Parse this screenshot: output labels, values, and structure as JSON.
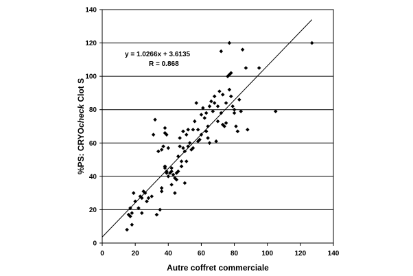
{
  "chart_data": {
    "type": "scatter",
    "title": "",
    "xlabel": "Autre coffret commerciale",
    "ylabel_prefix": "%PS: CRYO",
    "ylabel_italic": "check",
    "ylabel_suffix": " Clot S",
    "xlim": [
      0,
      140
    ],
    "ylim": [
      0,
      140
    ],
    "xticks": [
      "0",
      "20",
      "40",
      "60",
      "80",
      "100",
      "120",
      "140"
    ],
    "yticks": [
      "0",
      "20",
      "40",
      "60",
      "80",
      "100",
      "120",
      "140"
    ],
    "grid": "horizontal",
    "legend": "none",
    "annotation": {
      "equation": "y = 1.0266x + 3.6135",
      "r": "R = 0.868"
    },
    "trendline": {
      "slope": 1.0266,
      "intercept": 3.6135,
      "x_range": [
        0,
        127
      ]
    },
    "points": [
      [
        15,
        8
      ],
      [
        16,
        17
      ],
      [
        17,
        21
      ],
      [
        17,
        16
      ],
      [
        18,
        18
      ],
      [
        18,
        11
      ],
      [
        19,
        30
      ],
      [
        20,
        25
      ],
      [
        22,
        21
      ],
      [
        23,
        28
      ],
      [
        24,
        27
      ],
      [
        24,
        18
      ],
      [
        25,
        31
      ],
      [
        26,
        30
      ],
      [
        27,
        25
      ],
      [
        28,
        27
      ],
      [
        30,
        28
      ],
      [
        31,
        65
      ],
      [
        32,
        74
      ],
      [
        33,
        17
      ],
      [
        34,
        55
      ],
      [
        35,
        20
      ],
      [
        36,
        56
      ],
      [
        36,
        33
      ],
      [
        36,
        31
      ],
      [
        37,
        58
      ],
      [
        38,
        69
      ],
      [
        38,
        66
      ],
      [
        38,
        46
      ],
      [
        38,
        45
      ],
      [
        39,
        65
      ],
      [
        39,
        43
      ],
      [
        39,
        42
      ],
      [
        40,
        57
      ],
      [
        40,
        40
      ],
      [
        41,
        42
      ],
      [
        42,
        45
      ],
      [
        42,
        43
      ],
      [
        42,
        35
      ],
      [
        43,
        41
      ],
      [
        44,
        30
      ],
      [
        44,
        39
      ],
      [
        45,
        42
      ],
      [
        45,
        38
      ],
      [
        46,
        52
      ],
      [
        46,
        43
      ],
      [
        47,
        63
      ],
      [
        47,
        58
      ],
      [
        48,
        49
      ],
      [
        48,
        46
      ],
      [
        49,
        67
      ],
      [
        49,
        57
      ],
      [
        50,
        55
      ],
      [
        50,
        36
      ],
      [
        51,
        65
      ],
      [
        51,
        49
      ],
      [
        52,
        68
      ],
      [
        52,
        58
      ],
      [
        53,
        60
      ],
      [
        54,
        56
      ],
      [
        55,
        57
      ],
      [
        55,
        68
      ],
      [
        56,
        73
      ],
      [
        57,
        84
      ],
      [
        58,
        61
      ],
      [
        58,
        68
      ],
      [
        59,
        62
      ],
      [
        60,
        77
      ],
      [
        60,
        65
      ],
      [
        61,
        81
      ],
      [
        62,
        75
      ],
      [
        63,
        78
      ],
      [
        63,
        67
      ],
      [
        64,
        70
      ],
      [
        64,
        63
      ],
      [
        65,
        82
      ],
      [
        65,
        60
      ],
      [
        66,
        85
      ],
      [
        67,
        79
      ],
      [
        68,
        84
      ],
      [
        68,
        88
      ],
      [
        69,
        61
      ],
      [
        70,
        82
      ],
      [
        70,
        73
      ],
      [
        71,
        91
      ],
      [
        72,
        115
      ],
      [
        72,
        78
      ],
      [
        73,
        89
      ],
      [
        73,
        71
      ],
      [
        74,
        70
      ],
      [
        75,
        72
      ],
      [
        75,
        84
      ],
      [
        76,
        100
      ],
      [
        77,
        120
      ],
      [
        77,
        101
      ],
      [
        77,
        92
      ],
      [
        78,
        102
      ],
      [
        78,
        88
      ],
      [
        79,
        82
      ],
      [
        80,
        78
      ],
      [
        80,
        80
      ],
      [
        81,
        70
      ],
      [
        82,
        67
      ],
      [
        83,
        86
      ],
      [
        84,
        79
      ],
      [
        85,
        116
      ],
      [
        87,
        105
      ],
      [
        88,
        68
      ],
      [
        95,
        105
      ],
      [
        105,
        79
      ],
      [
        127,
        120
      ]
    ]
  }
}
